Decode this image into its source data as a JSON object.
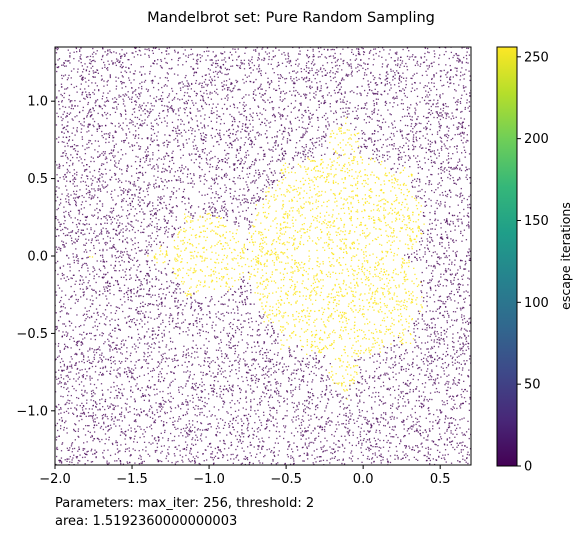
{
  "chart_data": {
    "type": "scatter",
    "title": "Mandelbrot set: Pure Random Sampling",
    "xlabel": "",
    "ylabel": "",
    "xlim": [
      -2.0,
      0.7
    ],
    "ylim": [
      -1.35,
      1.35
    ],
    "x_ticks": [
      -2.0,
      -1.5,
      -1.0,
      -0.5,
      0.0,
      0.5
    ],
    "x_tick_labels": [
      "−2.0",
      "−1.5",
      "−1.0",
      "−0.5",
      "0.0",
      "0.5"
    ],
    "y_ticks": [
      -1.0,
      -0.5,
      0.0,
      0.5,
      1.0
    ],
    "y_tick_labels": [
      "−1.0",
      "−0.5",
      "0.0",
      "0.5",
      "1.0"
    ],
    "sampling": "pure random (uniform over plot area)",
    "color_metric": "escape iterations",
    "colorbar": {
      "label": "escape iterations",
      "range": [
        0,
        256
      ],
      "ticks": [
        0,
        50,
        100,
        150,
        200,
        250
      ],
      "tick_labels": [
        "0",
        "50",
        "100",
        "150",
        "200",
        "250"
      ],
      "colormap": "viridis"
    },
    "parameters": {
      "max_iter": 256,
      "threshold": 2
    },
    "area": "1.5192360000000003",
    "grid": false,
    "legend": "none"
  },
  "caption": {
    "line1": "Parameters: max_iter: 256, threshold: 2",
    "line2": "area: 1.5192360000000003"
  },
  "colors": {
    "escaped_point": "#440154",
    "inside_point": "#fde725",
    "viridis_stops": [
      "#440154",
      "#482878",
      "#3e4989",
      "#31688e",
      "#26828e",
      "#1f9e89",
      "#35b779",
      "#6ece58",
      "#b5de2b",
      "#fde725"
    ]
  }
}
